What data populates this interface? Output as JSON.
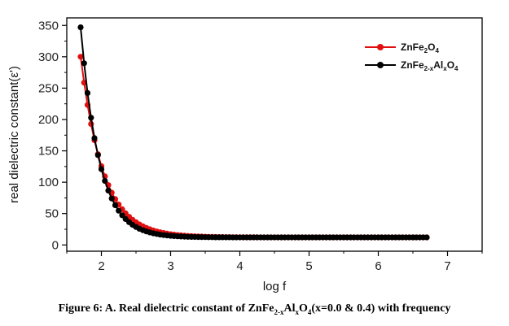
{
  "caption": {
    "prefix": "Figure 6: A. Real dielectric constant of ZnFe",
    "sub1": "2-x",
    "mid1": "Al",
    "sub2": "x",
    "mid2": "O",
    "sub3": "4",
    "suffix": "(x=0.0 & 0.4) with frequency"
  },
  "chart_data": {
    "type": "line",
    "title": "",
    "xlabel": "log f",
    "ylabel": "real dielectric constant(ε')",
    "xlim": [
      1.5,
      7.5
    ],
    "ylim": [
      -10,
      362
    ],
    "xticks": [
      2,
      3,
      4,
      5,
      6,
      7
    ],
    "yticks": [
      0,
      50,
      100,
      150,
      200,
      250,
      300,
      350
    ],
    "grid": false,
    "legend_position": "top-right",
    "series": [
      {
        "name_parts": [
          {
            "text": "ZnFe",
            "sub": false
          },
          {
            "text": "2",
            "sub": true
          },
          {
            "text": "O",
            "sub": false
          },
          {
            "text": "4",
            "sub": true
          }
        ],
        "color": "#e01010",
        "x_start": 1.7,
        "x_end": 6.7,
        "x_step": 0.05,
        "asymptote": 12,
        "amplitude": 288,
        "decay_rate": 3.1
      },
      {
        "name_parts": [
          {
            "text": "ZnFe",
            "sub": false
          },
          {
            "text": "2-x",
            "sub": true
          },
          {
            "text": "Al",
            "sub": false
          },
          {
            "text": "x",
            "sub": true
          },
          {
            "text": "O",
            "sub": false
          },
          {
            "text": "4",
            "sub": true
          }
        ],
        "color": "#000000",
        "x_start": 1.7,
        "x_end": 6.7,
        "x_step": 0.05,
        "asymptote": 12,
        "amplitude": 335,
        "decay_rate": 3.75
      }
    ]
  }
}
